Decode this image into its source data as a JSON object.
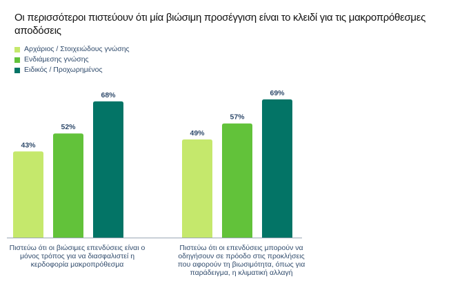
{
  "title": "Οι περισσότεροι πιστεύουν ότι μία βιώσιμη προσέγγιση είναι το κλειδί για τις μακροπρόθεσμες αποδόσεις",
  "colors": {
    "series_1": "#c5e86c",
    "series_2": "#62c23a",
    "series_3": "#037466",
    "text": "#2f4a6b",
    "axis": "#9aa6b4"
  },
  "chart_data": {
    "type": "bar",
    "title": "Οι περισσότεροι πιστεύουν ότι μία βιώσιμη προσέγγιση είναι το κλειδί για τις μακροπρόθεσμες αποδόσεις",
    "categories": [
      "Πιστεύω ότι οι βιώσιμες επενδύσεις είναι ο μόνος τρόπος για να διασφαλιστεί η κερδοφορία μακροπρόθεσμα",
      "Πιστεύω ότι οι επενδύσεις μπορούν να οδηγήσουν σε πρόοδο στις προκλήσεις που αφορούν τη βιωσιμότητα, όπως για παράδειγμα, η κλιματική αλλαγή"
    ],
    "series": [
      {
        "name": "Αρχάριος / Στοιχειώδους γνώσης",
        "values": [
          43,
          49
        ]
      },
      {
        "name": "Ενδιάμεσης γνώσης",
        "values": [
          52,
          57
        ]
      },
      {
        "name": "Ειδικός / Προχωρημένος",
        "values": [
          68,
          69
        ]
      }
    ],
    "value_suffix": "%",
    "ylim": [
      0,
      100
    ],
    "grid": false,
    "legend": "top-left"
  }
}
